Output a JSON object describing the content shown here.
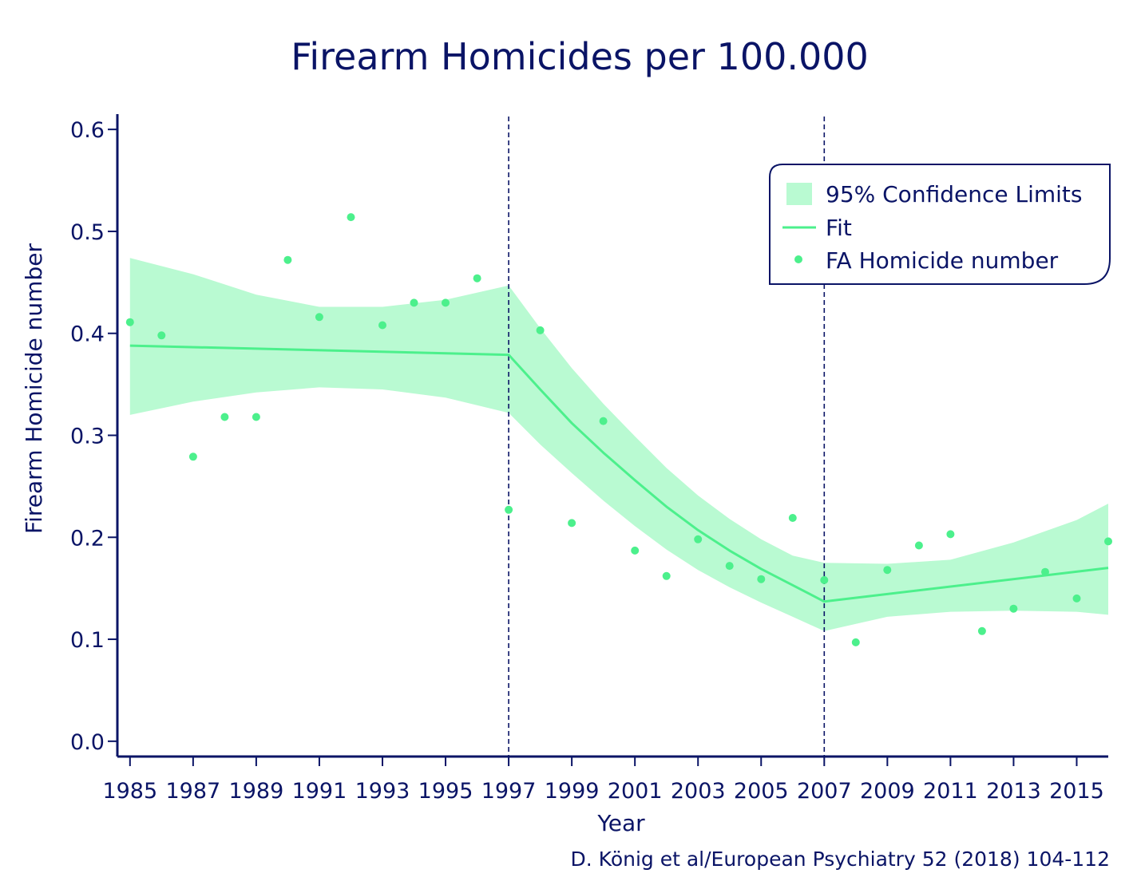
{
  "chart_data": {
    "type": "scatter",
    "title": "Firearm Homicides per 100.000",
    "xlabel": "Year",
    "ylabel": "Firearm Homicide number",
    "source": "D. König et al/European Psychiatry 52 (2018) 104-112",
    "xlim": [
      1984.6,
      2016
    ],
    "ylim": [
      -0.015,
      0.615
    ],
    "xticks": [
      1985,
      1987,
      1989,
      1991,
      1993,
      1995,
      1997,
      1999,
      2001,
      2003,
      2005,
      2007,
      2009,
      2011,
      2013,
      2015
    ],
    "xtick_labels": [
      "1985",
      "1987",
      "1989",
      "1991",
      "1993",
      "1995",
      "1997",
      "1999",
      "2001",
      "2003",
      "2005",
      "2007",
      "2009",
      "2011",
      "2013",
      "2015"
    ],
    "yticks": [
      0.0,
      0.1,
      0.2,
      0.3,
      0.4,
      0.5,
      0.6
    ],
    "ytick_labels": [
      "0.0",
      "0.1",
      "0.2",
      "0.3",
      "0.4",
      "0.5",
      "0.6"
    ],
    "breakpoints": [
      1997,
      2007
    ],
    "legend": {
      "position": "top-right",
      "items": [
        "95% Confidence Limits",
        "Fit",
        "FA Homicide number"
      ]
    },
    "colors": {
      "text": "#0a1466",
      "points": "#4cf08c",
      "fit": "#4cf08c",
      "band": "#b9fad2",
      "vline": "#0a1466"
    },
    "series": [
      {
        "name": "FA Homicide number",
        "type": "scatter",
        "x": [
          1985,
          1986,
          1987,
          1988,
          1989,
          1990,
          1991,
          1992,
          1993,
          1994,
          1995,
          1996,
          1997,
          1998,
          1999,
          2000,
          2001,
          2002,
          2003,
          2004,
          2005,
          2006,
          2007,
          2008,
          2009,
          2010,
          2011,
          2012,
          2013,
          2014,
          2015,
          2016
        ],
        "y": [
          0.411,
          0.398,
          0.279,
          0.318,
          0.318,
          0.472,
          0.416,
          0.514,
          0.408,
          0.43,
          0.43,
          0.454,
          0.227,
          0.403,
          0.214,
          0.314,
          0.187,
          0.162,
          0.198,
          0.172,
          0.159,
          0.219,
          0.158,
          0.097,
          0.168,
          0.192,
          0.203,
          0.108,
          0.13,
          0.166,
          0.14,
          0.196
        ]
      },
      {
        "name": "Fit",
        "type": "line",
        "x": [
          1985,
          1997,
          1998,
          1999,
          2000,
          2001,
          2002,
          2003,
          2004,
          2005,
          2006,
          2007,
          2016
        ],
        "y": [
          0.388,
          0.379,
          0.345,
          0.312,
          0.283,
          0.256,
          0.23,
          0.207,
          0.187,
          0.169,
          0.153,
          0.137,
          0.17
        ]
      },
      {
        "name": "95% Confidence Limits",
        "type": "band",
        "x": [
          1985,
          1987,
          1989,
          1991,
          1993,
          1995,
          1997,
          1998,
          1999,
          2000,
          2001,
          2002,
          2003,
          2004,
          2005,
          2006,
          2007,
          2009,
          2011,
          2013,
          2015,
          2016
        ],
        "upper": [
          0.474,
          0.458,
          0.438,
          0.426,
          0.426,
          0.433,
          0.447,
          0.405,
          0.366,
          0.331,
          0.299,
          0.268,
          0.241,
          0.218,
          0.198,
          0.182,
          0.175,
          0.174,
          0.178,
          0.195,
          0.217,
          0.233
        ],
        "lower": [
          0.32,
          0.333,
          0.342,
          0.347,
          0.345,
          0.337,
          0.322,
          0.291,
          0.263,
          0.236,
          0.211,
          0.188,
          0.168,
          0.151,
          0.136,
          0.122,
          0.108,
          0.122,
          0.127,
          0.128,
          0.127,
          0.124
        ]
      }
    ]
  }
}
